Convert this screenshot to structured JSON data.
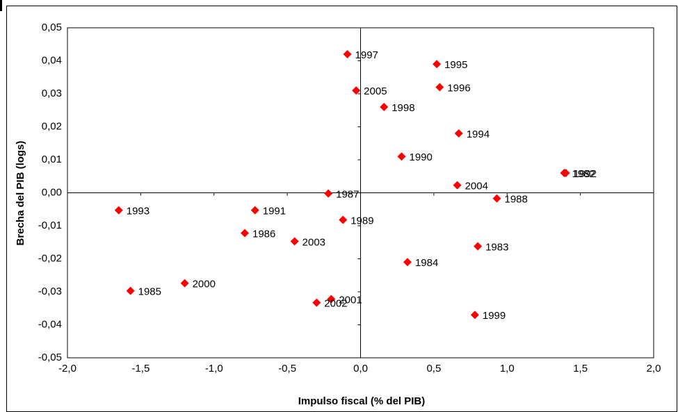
{
  "chart_data": {
    "type": "scatter",
    "x_label": "Impulso fiscal (% del PIB)",
    "y_label": "Brecha del PIB (logs)",
    "color": "#ff0000",
    "labels": [
      "1997",
      "1995",
      "1996",
      "2005",
      "1998",
      "1994",
      "1990",
      "1982",
      "1992",
      "2004",
      "1987",
      "1988",
      "1993",
      "1991",
      "1989",
      "1986",
      "2003",
      "1983",
      "1984",
      "2000",
      "1985",
      "2001",
      "2002",
      "1999"
    ],
    "x": [
      -0.09,
      0.52,
      0.54,
      -0.03,
      0.16,
      0.67,
      0.28,
      1.39,
      1.4,
      0.66,
      -0.22,
      0.93,
      -1.65,
      -0.72,
      -0.12,
      -0.79,
      -0.45,
      0.8,
      0.32,
      -1.2,
      -1.57,
      -0.2,
      -0.3,
      0.78
    ],
    "values": [
      0.042,
      0.039,
      0.032,
      0.031,
      0.026,
      0.018,
      0.011,
      0.006,
      0.006,
      0.0023,
      -0.0002,
      -0.0017,
      -0.0053,
      -0.0053,
      -0.0082,
      -0.0122,
      -0.0147,
      -0.0162,
      -0.021,
      -0.0274,
      -0.0297,
      -0.0322,
      -0.0333,
      -0.037
    ],
    "xlim": [
      -2.0,
      2.0
    ],
    "ylim": [
      -0.05,
      0.05
    ],
    "xticks": [
      {
        "value": -2.0,
        "label": "-2,0"
      },
      {
        "value": -1.5,
        "label": "-1,5"
      },
      {
        "value": -1.0,
        "label": "-1,0"
      },
      {
        "value": -0.5,
        "label": "-0,5"
      },
      {
        "value": 0.0,
        "label": "0,0"
      },
      {
        "value": 0.5,
        "label": "0,5"
      },
      {
        "value": 1.0,
        "label": "1,0"
      },
      {
        "value": 1.5,
        "label": "1,5"
      },
      {
        "value": 2.0,
        "label": "2,0"
      }
    ],
    "yticks": [
      {
        "value": -0.05,
        "label": "-0,05"
      },
      {
        "value": -0.04,
        "label": "-0,04"
      },
      {
        "value": -0.03,
        "label": "-0,03"
      },
      {
        "value": -0.02,
        "label": "-0,02"
      },
      {
        "value": -0.01,
        "label": "-0,01"
      },
      {
        "value": 0.0,
        "label": "0,00"
      },
      {
        "value": 0.01,
        "label": "0,01"
      },
      {
        "value": 0.02,
        "label": "0,02"
      },
      {
        "value": 0.03,
        "label": "0,03"
      },
      {
        "value": 0.04,
        "label": "0,04"
      },
      {
        "value": 0.05,
        "label": "0,05"
      }
    ]
  }
}
